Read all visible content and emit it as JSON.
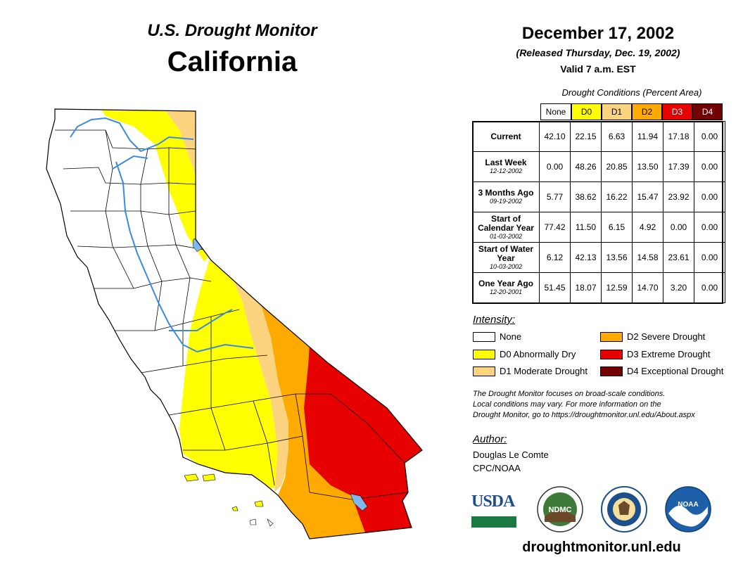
{
  "header": {
    "title": "U.S. Drought Monitor",
    "state": "California",
    "date": "December 17, 2002",
    "released": "(Released Thursday, Dec. 19, 2002)",
    "valid": "Valid 7 a.m. EST"
  },
  "table": {
    "caption": "Drought Conditions (Percent Area)",
    "columns": [
      "None",
      "D0",
      "D1",
      "D2",
      "D3",
      "D4"
    ],
    "column_colors": [
      "#ffffff",
      "#ffff00",
      "#fcd37f",
      "#ffaa00",
      "#e60000",
      "#730000"
    ],
    "rows": [
      {
        "label": "Current",
        "sub": "",
        "values": [
          "42.10",
          "22.15",
          "6.63",
          "11.94",
          "17.18",
          "0.00"
        ]
      },
      {
        "label": "Last Week",
        "sub": "12-12-2002",
        "values": [
          "0.00",
          "48.26",
          "20.85",
          "13.50",
          "17.39",
          "0.00"
        ]
      },
      {
        "label": "3 Months Ago",
        "sub": "09-19-2002",
        "values": [
          "5.77",
          "38.62",
          "16.22",
          "15.47",
          "23.92",
          "0.00"
        ]
      },
      {
        "label": "Start of Calendar Year",
        "sub": "01-03-2002",
        "values": [
          "77.42",
          "11.50",
          "6.15",
          "4.92",
          "0.00",
          "0.00"
        ]
      },
      {
        "label": "Start of Water Year",
        "sub": "10-03-2002",
        "values": [
          "6.12",
          "42.13",
          "13.56",
          "14.58",
          "23.61",
          "0.00"
        ]
      },
      {
        "label": "One Year Ago",
        "sub": "12-20-2001",
        "values": [
          "51.45",
          "18.07",
          "12.59",
          "14.70",
          "3.20",
          "0.00"
        ]
      }
    ]
  },
  "legend": {
    "heading": "Intensity:",
    "items": [
      {
        "label": "None",
        "color": "#ffffff"
      },
      {
        "label": "D0 Abnormally Dry",
        "color": "#ffff00"
      },
      {
        "label": "D1 Moderate Drought",
        "color": "#fcd37f"
      },
      {
        "label": "D2 Severe Drought",
        "color": "#ffaa00"
      },
      {
        "label": "D3 Extreme Drought",
        "color": "#e60000"
      },
      {
        "label": "D4 Exceptional Drought",
        "color": "#730000"
      }
    ]
  },
  "note": {
    "line1": "The Drought Monitor focuses on broad-scale conditions.",
    "line2": "Local conditions may vary. For more information on the",
    "line3": "Drought Monitor, go to https://droughtmonitor.unl.edu/About.aspx"
  },
  "author": {
    "heading": "Author:",
    "name": "Douglas Le Comte",
    "org": "CPC/NOAA"
  },
  "logos": {
    "usda": "USDA",
    "ndmc": "NDMC",
    "noaa": "NOAA"
  },
  "footer": {
    "url": "droughtmonitor.unl.edu"
  },
  "map_colors": {
    "none": "#ffffff",
    "d0": "#ffff00",
    "d1": "#fcd37f",
    "d2": "#ffaa00",
    "d3": "#e60000",
    "water": "#7fb8ec"
  }
}
